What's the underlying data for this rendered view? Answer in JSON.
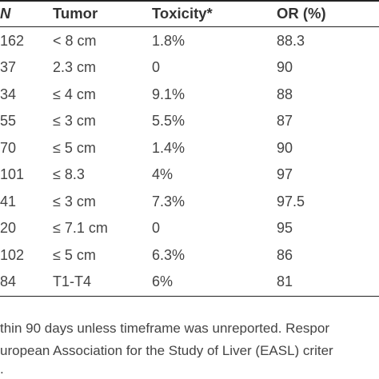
{
  "table": {
    "headers": [
      "N",
      "Tumor",
      "Toxicity*",
      "OR (%)"
    ],
    "rows": [
      [
        "162",
        "< 8 cm",
        "1.8%",
        "88.3"
      ],
      [
        "37",
        "2.3 cm",
        "0",
        "90"
      ],
      [
        "34",
        "≤ 4 cm",
        "9.1%",
        "88"
      ],
      [
        "55",
        "≤ 3 cm",
        "5.5%",
        "87"
      ],
      [
        "70",
        "≤ 5 cm",
        "1.4%",
        "90"
      ],
      [
        "101",
        "≤ 8.3",
        "4%",
        "97"
      ],
      [
        "41",
        "≤ 3 cm",
        "7.3%",
        "97.5"
      ],
      [
        "20",
        "≤ 7.1 cm",
        "0",
        "95"
      ],
      [
        "102",
        "≤ 5 cm",
        "6.3%",
        "86"
      ],
      [
        "84",
        "T1-T4",
        "6%",
        "81"
      ]
    ]
  },
  "footnotes": [
    "thin 90 days unless timeframe was unreported. Respor",
    "uropean Association for the Study of Liver (EASL) criter",
    "."
  ]
}
